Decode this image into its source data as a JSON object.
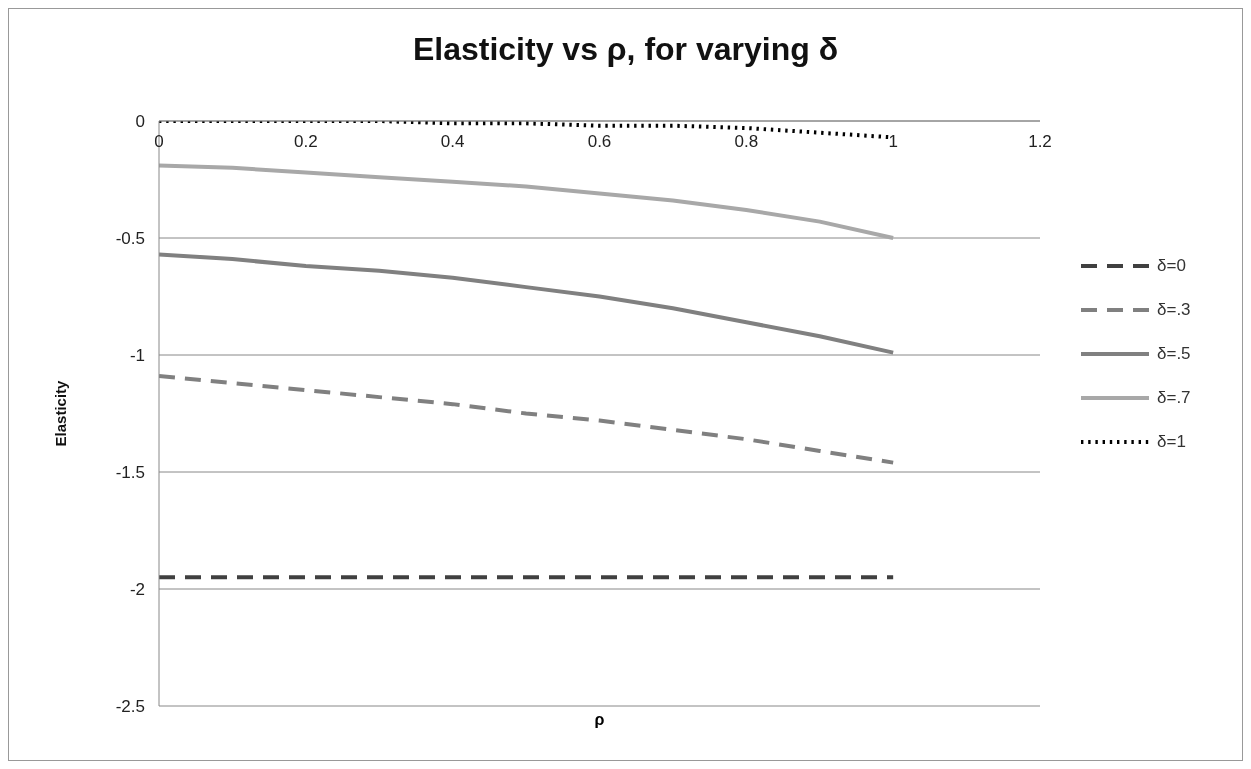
{
  "chart_data": {
    "type": "line",
    "title": "Elasticity vs ρ, for varying δ",
    "xlabel": "ρ",
    "ylabel": "Elasticity",
    "x": [
      0,
      0.1,
      0.2,
      0.3,
      0.4,
      0.5,
      0.6,
      0.7,
      0.8,
      0.9,
      1
    ],
    "xlim": [
      0,
      1.2
    ],
    "xticks": [
      0,
      0.2,
      0.4,
      0.6,
      0.8,
      1,
      1.2
    ],
    "ylim": [
      -2.5,
      0
    ],
    "yticks": [
      -2.5,
      -2,
      -1.5,
      -1,
      -0.5,
      0
    ],
    "grid": "y",
    "legend": "right",
    "marker": "none",
    "series": [
      {
        "name": "δ=0",
        "color": "#404040",
        "line_style": "dashed",
        "values": [
          -1.95,
          -1.95,
          -1.95,
          -1.95,
          -1.95,
          -1.95,
          -1.95,
          -1.95,
          -1.95,
          -1.95,
          -1.95
        ]
      },
      {
        "name": "δ=.3",
        "color": "#808080",
        "line_style": "dashed",
        "values": [
          -1.09,
          -1.12,
          -1.15,
          -1.18,
          -1.21,
          -1.25,
          -1.28,
          -1.32,
          -1.36,
          -1.41,
          -1.46
        ]
      },
      {
        "name": "δ=.5",
        "color": "#808080",
        "line_style": "solid",
        "values": [
          -0.57,
          -0.59,
          -0.62,
          -0.64,
          -0.67,
          -0.71,
          -0.75,
          -0.8,
          -0.86,
          -0.92,
          -0.99
        ]
      },
      {
        "name": "δ=.7",
        "color": "#a8a8a8",
        "line_style": "solid",
        "values": [
          -0.19,
          -0.2,
          -0.22,
          -0.24,
          -0.26,
          -0.28,
          -0.31,
          -0.34,
          -0.38,
          -0.43,
          -0.5
        ]
      },
      {
        "name": "δ=1",
        "color": "#000000",
        "line_style": "dotted",
        "values": [
          0,
          0,
          0,
          0,
          -0.01,
          -0.01,
          -0.02,
          -0.02,
          -0.03,
          -0.05,
          -0.07
        ]
      }
    ]
  }
}
